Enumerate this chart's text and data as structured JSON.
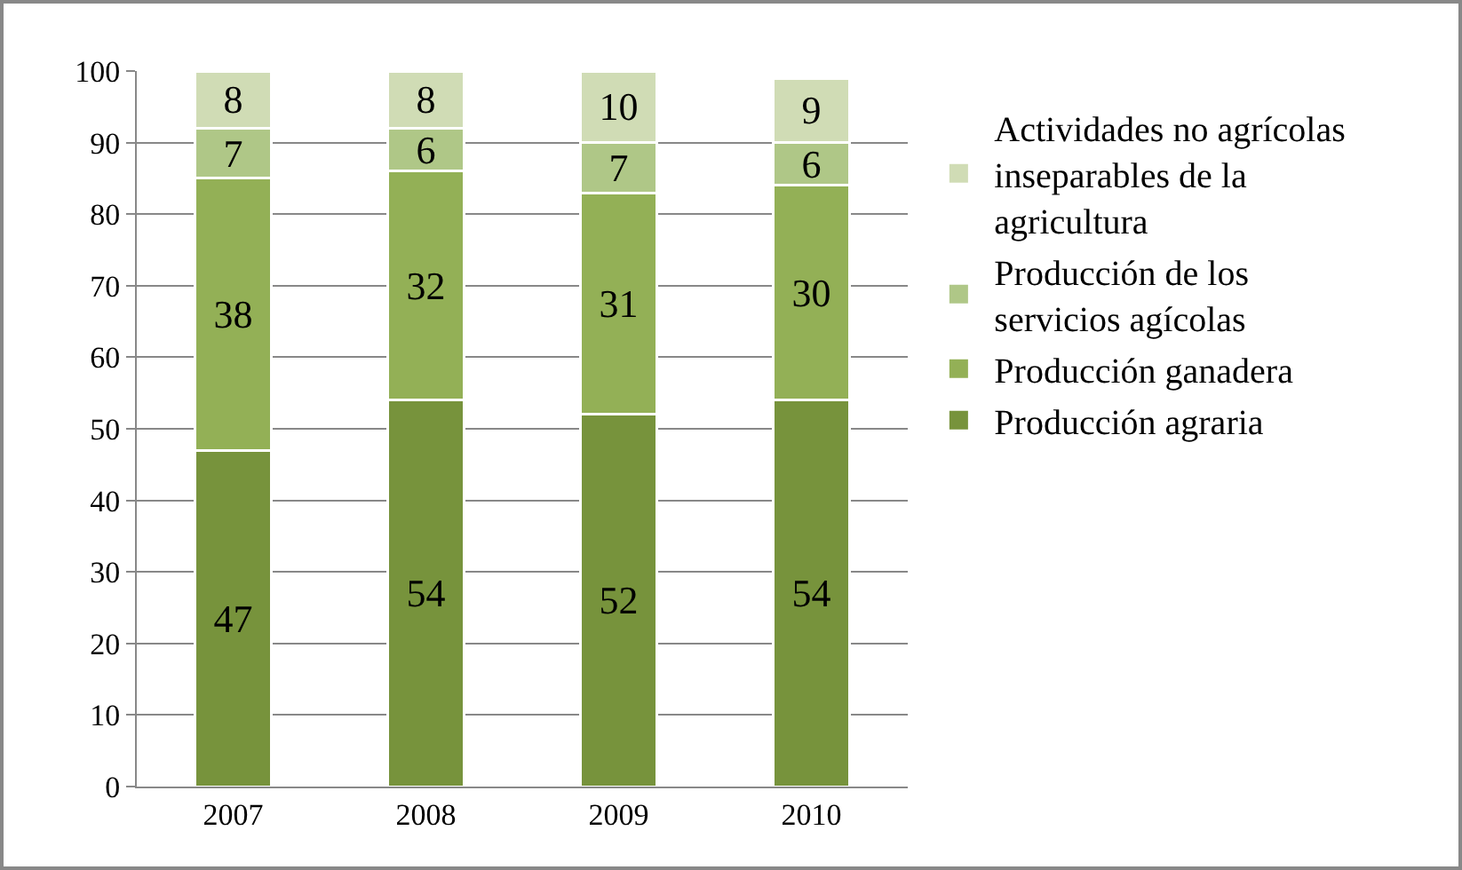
{
  "chart_data": {
    "type": "bar",
    "stacked": true,
    "categories": [
      "2007",
      "2008",
      "2009",
      "2010"
    ],
    "series": [
      {
        "name": "Producción agraria",
        "color": "#77933c",
        "values": [
          47,
          54,
          52,
          54
        ]
      },
      {
        "name": "Producción ganadera",
        "color": "#93b056",
        "values": [
          38,
          32,
          31,
          30
        ]
      },
      {
        "name": "Producción de los servicios agícolas",
        "color": "#afc787",
        "values": [
          7,
          6,
          7,
          6
        ]
      },
      {
        "name": "Actividades no agrícolas inseparables de la agricultura",
        "color": "#d0dcb5",
        "values": [
          8,
          8,
          10,
          9
        ]
      }
    ],
    "ylim": [
      0,
      100
    ],
    "yticks": [
      0,
      10,
      20,
      30,
      40,
      50,
      60,
      70,
      80,
      90,
      100
    ],
    "grid": "y",
    "legend": "right",
    "data_labels": true
  }
}
